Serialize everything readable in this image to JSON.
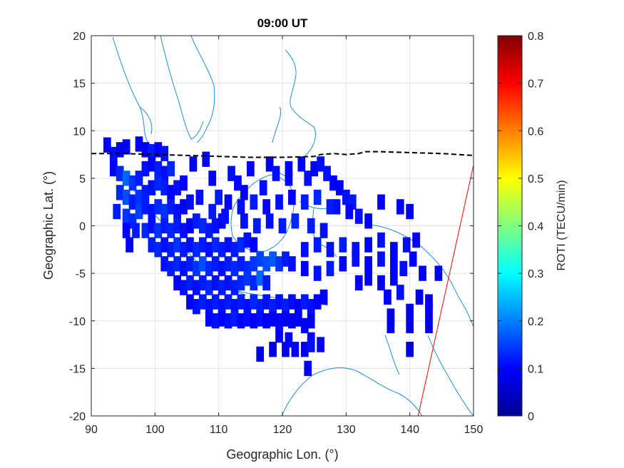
{
  "chart_data": {
    "type": "heatmap",
    "title": "09:00 UT",
    "xlabel": "Geographic Lon. (°)",
    "ylabel": "Geographic Lat. (°)",
    "xlim": [
      90,
      150
    ],
    "ylim": [
      -20,
      20
    ],
    "xticks": [
      "90",
      "100",
      "110",
      "120",
      "130",
      "140",
      "150"
    ],
    "yticks": [
      "20",
      "15",
      "10",
      "5",
      "0",
      "-5",
      "-10",
      "-15",
      "-20"
    ],
    "grid": true,
    "colorbar": {
      "label": "ROTI (TECU/min)",
      "range": [
        0,
        0.8
      ],
      "ticks": [
        "0",
        "0.1",
        "0.2",
        "0.3",
        "0.4",
        "0.5",
        "0.6",
        "0.7",
        "0.8"
      ],
      "colormap": "jet"
    },
    "magnetic_equator": {
      "style": "dashed",
      "color": "#000000",
      "lon": [
        90,
        95,
        100,
        105,
        110,
        115,
        120,
        125,
        126,
        128,
        130,
        132,
        133,
        135,
        140,
        145,
        150
      ],
      "lat": [
        7.6,
        7.6,
        7.5,
        7.4,
        7.3,
        7.2,
        7.2,
        7.3,
        7.5,
        7.6,
        7.5,
        7.6,
        7.8,
        7.8,
        7.7,
        7.6,
        7.4
      ]
    },
    "red_line": {
      "color": "#ff0000",
      "lon": [
        141.3,
        150
      ],
      "lat": [
        -20,
        6.4
      ]
    },
    "coastline_color": "#1f8fd0",
    "cell_size_deg": [
      1.2,
      1.6
    ],
    "cells": [
      [
        92.5,
        8.5,
        0.1
      ],
      [
        93.5,
        7.5,
        0.11
      ],
      [
        94.5,
        8.0,
        0.09
      ],
      [
        95.5,
        8.3,
        0.1
      ],
      [
        97.5,
        8.6,
        0.09
      ],
      [
        98.5,
        8.0,
        0.1
      ],
      [
        99.5,
        7.8,
        0.12
      ],
      [
        100.5,
        8.0,
        0.1
      ],
      [
        101.5,
        7.6,
        0.11
      ],
      [
        93.5,
        6.0,
        0.1
      ],
      [
        94.5,
        5.5,
        0.13
      ],
      [
        95.5,
        5.0,
        0.18
      ],
      [
        96.5,
        4.5,
        0.14
      ],
      [
        97.5,
        5.0,
        0.12
      ],
      [
        98.5,
        6.0,
        0.11
      ],
      [
        99.5,
        6.5,
        0.1
      ],
      [
        100.5,
        6.0,
        0.12
      ],
      [
        101.5,
        5.5,
        0.11
      ],
      [
        102.5,
        6.0,
        0.13
      ],
      [
        94.5,
        3.5,
        0.13
      ],
      [
        95.5,
        3.0,
        0.16
      ],
      [
        96.5,
        2.5,
        0.12
      ],
      [
        97.5,
        3.0,
        0.14
      ],
      [
        98.5,
        3.5,
        0.12
      ],
      [
        99.5,
        4.0,
        0.11
      ],
      [
        100.5,
        4.5,
        0.13
      ],
      [
        101.5,
        4.0,
        0.12
      ],
      [
        102.5,
        3.5,
        0.1
      ],
      [
        103.5,
        4.0,
        0.11
      ],
      [
        104.5,
        4.5,
        0.1
      ],
      [
        94.0,
        1.5,
        0.12
      ],
      [
        95.5,
        1.0,
        0.14
      ],
      [
        96.5,
        0.5,
        0.13
      ],
      [
        97.5,
        1.5,
        0.15
      ],
      [
        98.5,
        2.0,
        0.12
      ],
      [
        99.5,
        1.5,
        0.11
      ],
      [
        100.5,
        2.0,
        0.13
      ],
      [
        101.5,
        1.5,
        0.14
      ],
      [
        102.5,
        2.0,
        0.12
      ],
      [
        103.5,
        1.5,
        0.11
      ],
      [
        104.5,
        2.0,
        0.1
      ],
      [
        105.5,
        2.5,
        0.11
      ],
      [
        97.0,
        -0.5,
        0.12
      ],
      [
        98.5,
        -0.5,
        0.13
      ],
      [
        99.5,
        0.0,
        0.11
      ],
      [
        100.5,
        -0.5,
        0.14
      ],
      [
        101.5,
        0.0,
        0.12
      ],
      [
        102.5,
        -0.5,
        0.13
      ],
      [
        103.5,
        0.0,
        0.12
      ],
      [
        104.5,
        -0.5,
        0.11
      ],
      [
        105.5,
        0.0,
        0.1
      ],
      [
        106.5,
        0.5,
        0.12
      ],
      [
        107.5,
        0.0,
        0.13
      ],
      [
        108.5,
        -0.5,
        0.12
      ],
      [
        109.5,
        0.0,
        0.11
      ],
      [
        110.5,
        0.5,
        0.1
      ],
      [
        95.5,
        -0.5,
        0.1
      ],
      [
        96.0,
        -2.0,
        0.09
      ],
      [
        99.5,
        -2.0,
        0.12
      ],
      [
        100.5,
        -2.5,
        0.13
      ],
      [
        101.5,
        -2.0,
        0.11
      ],
      [
        102.5,
        -2.5,
        0.12
      ],
      [
        103.5,
        -2.0,
        0.14
      ],
      [
        104.5,
        -2.5,
        0.12
      ],
      [
        105.5,
        -2.0,
        0.11
      ],
      [
        106.5,
        -2.5,
        0.13
      ],
      [
        107.5,
        -2.0,
        0.12
      ],
      [
        108.5,
        -2.5,
        0.11
      ],
      [
        109.5,
        -2.0,
        0.13
      ],
      [
        110.5,
        -2.5,
        0.12
      ],
      [
        111.5,
        -2.0,
        0.11
      ],
      [
        112.5,
        -2.5,
        0.12
      ],
      [
        113.5,
        -2.0,
        0.13
      ],
      [
        114.5,
        -1.5,
        0.11
      ],
      [
        115.5,
        -2.0,
        0.1
      ],
      [
        101.5,
        -4.0,
        0.11
      ],
      [
        102.5,
        -4.5,
        0.12
      ],
      [
        103.5,
        -4.0,
        0.13
      ],
      [
        104.5,
        -4.5,
        0.11
      ],
      [
        105.5,
        -4.0,
        0.12
      ],
      [
        106.5,
        -4.5,
        0.14
      ],
      [
        107.5,
        -4.0,
        0.16
      ],
      [
        108.5,
        -4.5,
        0.13
      ],
      [
        109.5,
        -4.0,
        0.12
      ],
      [
        110.5,
        -4.5,
        0.11
      ],
      [
        111.5,
        -4.0,
        0.12
      ],
      [
        112.5,
        -4.5,
        0.13
      ],
      [
        113.5,
        -4.0,
        0.12
      ],
      [
        114.5,
        -4.5,
        0.13
      ],
      [
        115.5,
        -4.0,
        0.14
      ],
      [
        116.5,
        -3.5,
        0.15
      ],
      [
        117.5,
        -4.0,
        0.16
      ],
      [
        118.5,
        -3.5,
        0.17
      ],
      [
        119.5,
        -4.0,
        0.14
      ],
      [
        120.5,
        -3.5,
        0.12
      ],
      [
        121.5,
        -4.0,
        0.11
      ],
      [
        103.5,
        -6.0,
        0.1
      ],
      [
        104.5,
        -6.5,
        0.11
      ],
      [
        105.5,
        -6.0,
        0.12
      ],
      [
        106.5,
        -6.5,
        0.11
      ],
      [
        107.5,
        -6.0,
        0.12
      ],
      [
        108.5,
        -6.5,
        0.13
      ],
      [
        109.5,
        -6.0,
        0.11
      ],
      [
        110.5,
        -6.5,
        0.12
      ],
      [
        111.5,
        -6.0,
        0.11
      ],
      [
        112.5,
        -6.5,
        0.12
      ],
      [
        113.5,
        -6.0,
        0.13
      ],
      [
        114.5,
        -5.5,
        0.14
      ],
      [
        115.5,
        -6.0,
        0.13
      ],
      [
        116.5,
        -5.5,
        0.18
      ],
      [
        117.5,
        -6.0,
        0.12
      ],
      [
        105.5,
        -8.0,
        0.1
      ],
      [
        106.5,
        -8.5,
        0.11
      ],
      [
        107.5,
        -8.0,
        0.12
      ],
      [
        108.5,
        -8.5,
        0.11
      ],
      [
        109.5,
        -8.0,
        0.12
      ],
      [
        110.5,
        -8.5,
        0.11
      ],
      [
        111.5,
        -8.0,
        0.12
      ],
      [
        112.5,
        -8.5,
        0.11
      ],
      [
        113.5,
        -8.0,
        0.12
      ],
      [
        114.5,
        -8.5,
        0.11
      ],
      [
        115.5,
        -8.0,
        0.13
      ],
      [
        116.5,
        -8.5,
        0.12
      ],
      [
        117.5,
        -8.0,
        0.11
      ],
      [
        118.5,
        -8.5,
        0.12
      ],
      [
        119.5,
        -8.0,
        0.11
      ],
      [
        120.5,
        -8.5,
        0.12
      ],
      [
        121.5,
        -8.0,
        0.11
      ],
      [
        122.5,
        -8.5,
        0.1
      ],
      [
        123.5,
        -8.0,
        0.12
      ],
      [
        124.5,
        -8.5,
        0.11
      ],
      [
        125.5,
        -8.0,
        0.1
      ],
      [
        126.5,
        -7.5,
        0.09
      ],
      [
        108.5,
        -9.8,
        0.1
      ],
      [
        109.5,
        -10.0,
        0.11
      ],
      [
        110.5,
        -9.8,
        0.1
      ],
      [
        111.5,
        -10.0,
        0.11
      ],
      [
        112.5,
        -9.8,
        0.12
      ],
      [
        113.5,
        -10.0,
        0.1
      ],
      [
        114.5,
        -9.8,
        0.11
      ],
      [
        115.5,
        -10.0,
        0.1
      ],
      [
        116.5,
        -9.8,
        0.11
      ],
      [
        117.5,
        -10.0,
        0.1
      ],
      [
        118.5,
        -9.8,
        0.09
      ],
      [
        119.5,
        -10.0,
        0.1
      ],
      [
        120.5,
        -9.8,
        0.09
      ],
      [
        121.5,
        -10.0,
        0.1
      ],
      [
        122.5,
        -9.8,
        0.09
      ],
      [
        123.5,
        -10.5,
        0.1
      ],
      [
        124.5,
        -10.0,
        0.09
      ],
      [
        119.5,
        -11.5,
        0.09
      ],
      [
        121.0,
        -12.0,
        0.1
      ],
      [
        124.5,
        -12.0,
        0.09
      ],
      [
        118.5,
        -13.0,
        0.08
      ],
      [
        120.5,
        -13.0,
        0.09
      ],
      [
        122.0,
        -13.0,
        0.1
      ],
      [
        123.5,
        -13.0,
        0.09
      ],
      [
        124.5,
        -12.5,
        0.11
      ],
      [
        126.0,
        -12.5,
        0.1
      ],
      [
        116.5,
        -13.5,
        0.08
      ],
      [
        124.0,
        -15.0,
        0.09
      ],
      [
        140.0,
        -13.0,
        0.08
      ],
      [
        106.0,
        6.5,
        0.09
      ],
      [
        109.0,
        5.0,
        0.1
      ],
      [
        112.0,
        5.5,
        0.11
      ],
      [
        118.0,
        6.5,
        0.09
      ],
      [
        121.0,
        5.0,
        0.1
      ],
      [
        124.0,
        5.0,
        0.11
      ],
      [
        125.0,
        6.0,
        0.1
      ],
      [
        127.0,
        5.5,
        0.11
      ],
      [
        128.0,
        4.5,
        0.1
      ],
      [
        129.0,
        4.0,
        0.1
      ],
      [
        130.0,
        3.0,
        0.11
      ],
      [
        131.0,
        2.5,
        0.12
      ],
      [
        128.5,
        2.0,
        0.11
      ],
      [
        130.5,
        1.5,
        0.1
      ],
      [
        132.0,
        1.0,
        0.11
      ],
      [
        133.5,
        0.5,
        0.1
      ],
      [
        135.5,
        2.5,
        0.09
      ],
      [
        138.5,
        2.0,
        0.1
      ],
      [
        140.0,
        1.5,
        0.09
      ],
      [
        111.5,
        2.5,
        0.1
      ],
      [
        113.5,
        2.0,
        0.11
      ],
      [
        115.5,
        2.5,
        0.12
      ],
      [
        117.5,
        2.0,
        0.1
      ],
      [
        119.5,
        2.5,
        0.11
      ],
      [
        121.5,
        3.0,
        0.1
      ],
      [
        123.5,
        2.5,
        0.12
      ],
      [
        125.5,
        3.0,
        0.13
      ],
      [
        127.5,
        2.0,
        0.12
      ],
      [
        114.0,
        0.5,
        0.11
      ],
      [
        116.0,
        0.0,
        0.12
      ],
      [
        118.0,
        0.5,
        0.11
      ],
      [
        120.0,
        0.0,
        0.12
      ],
      [
        122.0,
        0.5,
        0.13
      ],
      [
        124.5,
        0.0,
        0.12
      ],
      [
        126.5,
        -0.5,
        0.11
      ],
      [
        123.5,
        -2.5,
        0.11
      ],
      [
        125.5,
        -2.0,
        0.12
      ],
      [
        127.5,
        -2.5,
        0.11
      ],
      [
        129.5,
        -2.0,
        0.12
      ],
      [
        131.5,
        -2.5,
        0.11
      ],
      [
        133.5,
        -2.0,
        0.1
      ],
      [
        135.5,
        -1.5,
        0.11
      ],
      [
        137.5,
        -2.5,
        0.1
      ],
      [
        139.5,
        -2.0,
        0.11
      ],
      [
        141.0,
        -1.5,
        0.1
      ],
      [
        123.5,
        -4.5,
        0.1
      ],
      [
        125.5,
        -5.0,
        0.11
      ],
      [
        127.5,
        -4.5,
        0.12
      ],
      [
        129.5,
        -4.0,
        0.1
      ],
      [
        131.5,
        -3.5,
        0.11
      ],
      [
        133.5,
        -4.0,
        0.1
      ],
      [
        135.5,
        -3.5,
        0.11
      ],
      [
        137.5,
        -4.0,
        0.1
      ],
      [
        139.0,
        -4.5,
        0.11
      ],
      [
        140.5,
        -3.5,
        0.1
      ],
      [
        142.0,
        -5.0,
        0.1
      ],
      [
        133.5,
        -5.5,
        0.1
      ],
      [
        135.5,
        -6.0,
        0.09
      ],
      [
        137.5,
        -5.5,
        0.1
      ],
      [
        138.5,
        -7.0,
        0.11
      ],
      [
        136.5,
        -7.5,
        0.09
      ],
      [
        132.0,
        -6.0,
        0.1
      ],
      [
        137.0,
        -9.5,
        0.08
      ],
      [
        140.0,
        -9.0,
        0.09
      ],
      [
        141.5,
        -7.5,
        0.09
      ],
      [
        143.0,
        -8.0,
        0.08
      ],
      [
        144.5,
        -5.0,
        0.09
      ],
      [
        140.0,
        -10.5,
        0.08
      ],
      [
        137.0,
        -10.5,
        0.09
      ],
      [
        143.0,
        -10.5,
        0.08
      ],
      [
        143.0,
        -9.0,
        0.09
      ],
      [
        108.0,
        7.0,
        0.09
      ],
      [
        114.0,
        3.5,
        0.1
      ],
      [
        117.0,
        4.0,
        0.11
      ],
      [
        121.0,
        6.0,
        0.09
      ],
      [
        123.0,
        6.5,
        0.1
      ],
      [
        126.0,
        6.5,
        0.11
      ],
      [
        115.0,
        6.0,
        0.1
      ],
      [
        119.0,
        5.5,
        0.11
      ],
      [
        113.0,
        4.5,
        0.1
      ],
      [
        110.0,
        3.0,
        0.12
      ],
      [
        111.0,
        1.0,
        0.11
      ],
      [
        109.0,
        1.5,
        0.12
      ],
      [
        107.0,
        3.0,
        0.11
      ]
    ]
  }
}
